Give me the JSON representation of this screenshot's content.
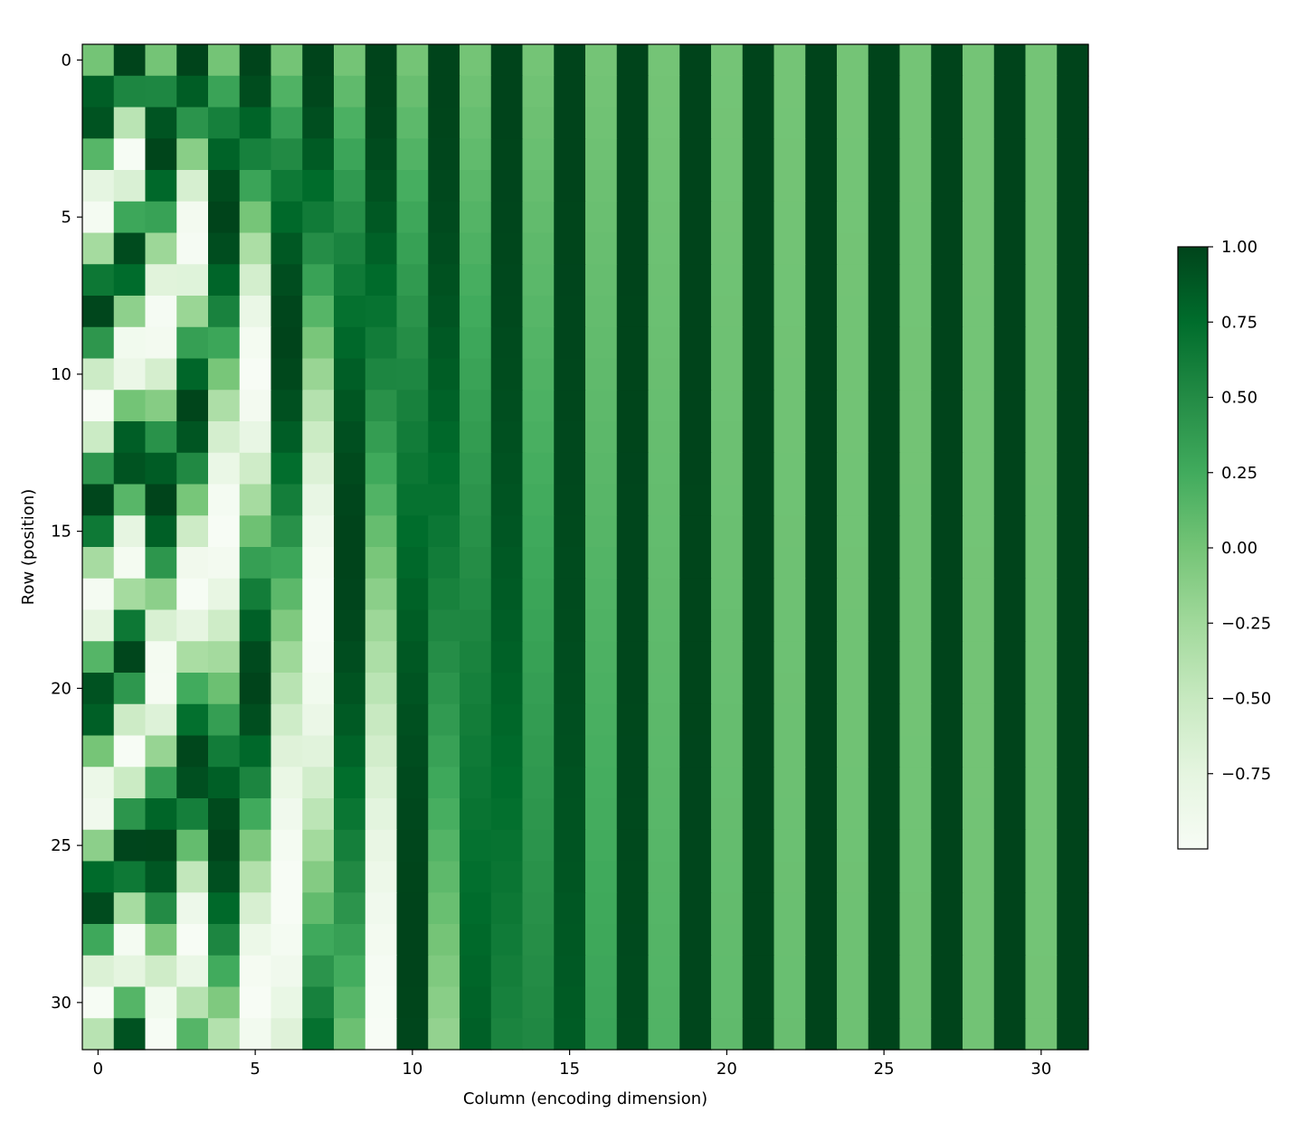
{
  "chart_data": {
    "type": "heatmap",
    "title": "",
    "xlabel": "Column (encoding dimension)",
    "ylabel": "Row (position)",
    "rows": 32,
    "cols": 32,
    "x_ticks": [
      0,
      5,
      10,
      15,
      20,
      25,
      30
    ],
    "y_ticks": [
      0,
      5,
      10,
      15,
      20,
      25,
      30
    ],
    "value_range": [
      -1,
      1
    ],
    "colormap": "Greens",
    "colormap_stops": [
      "#f7fcf5",
      "#e5f5e0",
      "#c7e9c0",
      "#a1d99b",
      "#74c476",
      "#41ab5d",
      "#238b45",
      "#006d2c",
      "#00441b"
    ],
    "values": "sinusoidal positional encoding: even column j -> sin(row / 10000^(j/32)), odd column j -> cos(row / 10000^((j-1)/32))",
    "colorbar": {
      "ticks": [
        "1.00",
        "0.75",
        "0.50",
        "0.25",
        "0.00",
        "−0.25",
        "−0.50",
        "−0.75"
      ],
      "tick_values": [
        1.0,
        0.75,
        0.5,
        0.25,
        0.0,
        -0.25,
        -0.5,
        -0.75
      ]
    },
    "grid": false,
    "legend": "none"
  }
}
